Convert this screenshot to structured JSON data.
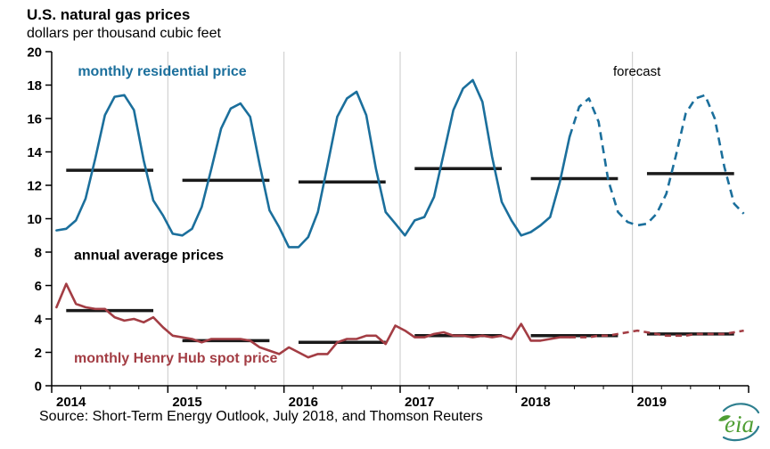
{
  "title": "U.S. natural gas prices",
  "subtitle": "dollars per thousand cubic feet",
  "source": "Source: Short-Term Energy Outlook, July 2018, and Thomson Reuters",
  "logo_text": "eia",
  "colors": {
    "residential_blue": "#1b6f9c",
    "henry_hub_red": "#a33d44",
    "annual_bar_black": "#1a1a1a",
    "gridline_gray": "#c9c9c9",
    "logo_green": "#4f9e33",
    "logo_teal": "#2e7f8f"
  },
  "chart_data": {
    "type": "line",
    "title": "U.S. natural gas prices",
    "ylabel": "dollars per thousand cubic feet",
    "ylim": [
      0,
      20
    ],
    "y_ticks": [
      0,
      2,
      4,
      6,
      8,
      10,
      12,
      14,
      16,
      18,
      20
    ],
    "x_years": [
      2014,
      2015,
      2016,
      2017,
      2018,
      2019
    ],
    "months_total": 72,
    "forecast_start_index": 54,
    "grid": "vertical-year-lines",
    "legend_position": "inline-annotations",
    "series": [
      {
        "name": "monthly residential price",
        "color": "#1b6f9c",
        "dash": "9 6",
        "values": [
          9.3,
          9.4,
          9.9,
          11.2,
          13.6,
          16.2,
          17.3,
          17.4,
          16.5,
          13.5,
          11.1,
          10.2,
          9.1,
          9.0,
          9.4,
          10.7,
          13.0,
          15.4,
          16.6,
          16.9,
          16.1,
          13.2,
          10.5,
          9.5,
          8.3,
          8.3,
          8.9,
          10.4,
          13.2,
          16.1,
          17.2,
          17.6,
          16.2,
          13.0,
          10.4,
          9.7,
          9.0,
          9.9,
          10.1,
          11.3,
          13.9,
          16.5,
          17.8,
          18.3,
          17.0,
          13.7,
          11.0,
          9.9,
          9.0,
          9.2,
          9.6,
          10.1,
          12.2,
          14.9,
          16.7,
          17.2,
          15.8,
          12.3,
          10.4,
          9.8,
          9.6,
          9.7,
          10.3,
          11.5,
          13.8,
          16.3,
          17.2,
          17.4,
          16.0,
          13.1,
          10.9,
          10.3
        ]
      },
      {
        "name": "monthly Henry Hub spot price",
        "color": "#a33d44",
        "dash": "7 5",
        "values": [
          4.7,
          6.1,
          4.9,
          4.7,
          4.6,
          4.6,
          4.1,
          3.9,
          4.0,
          3.8,
          4.1,
          3.5,
          3.0,
          2.9,
          2.8,
          2.6,
          2.8,
          2.8,
          2.8,
          2.8,
          2.7,
          2.3,
          2.1,
          1.9,
          2.3,
          2.0,
          1.7,
          1.9,
          1.9,
          2.6,
          2.8,
          2.8,
          3.0,
          3.0,
          2.5,
          3.6,
          3.3,
          2.9,
          2.9,
          3.1,
          3.2,
          3.0,
          3.0,
          2.9,
          3.0,
          2.9,
          3.0,
          2.8,
          3.7,
          2.7,
          2.7,
          2.8,
          2.9,
          2.9,
          2.9,
          2.9,
          3.0,
          3.0,
          3.1,
          3.2,
          3.3,
          3.2,
          3.1,
          3.0,
          3.0,
          3.0,
          3.1,
          3.1,
          3.1,
          3.1,
          3.2,
          3.3
        ]
      }
    ],
    "annual_averages": [
      {
        "name": "annual average residential price",
        "color": "#1a1a1a",
        "values": [
          12.9,
          12.3,
          12.2,
          13.0,
          12.4,
          12.7
        ]
      },
      {
        "name": "annual average Henry Hub spot price",
        "color": "#1a1a1a",
        "values": [
          4.5,
          2.7,
          2.6,
          3.0,
          3.0,
          3.1
        ]
      }
    ],
    "annotations": [
      {
        "text": "monthly residential price",
        "x": 2.2,
        "y": 18.55,
        "color": "#1b6f9c",
        "bold": true,
        "size": 16
      },
      {
        "text": "forecast",
        "x": 57.5,
        "y": 18.55,
        "color": "#000000",
        "bold": false,
        "size": 15
      },
      {
        "text": "annual average prices",
        "x": 1.8,
        "y": 7.55,
        "color": "#000000",
        "bold": true,
        "size": 16
      },
      {
        "text": "monthly Henry Hub spot price",
        "x": 1.8,
        "y": 1.4,
        "color": "#a33d44",
        "bold": true,
        "size": 16
      }
    ]
  }
}
